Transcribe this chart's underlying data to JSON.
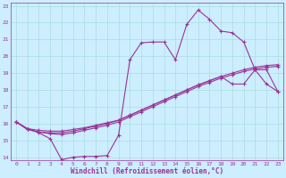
{
  "bg_color": "#cceeff",
  "grid_color": "#aadddd",
  "line_color": "#993399",
  "xlim": [
    -0.5,
    23.5
  ],
  "ylim": [
    13.8,
    23.2
  ],
  "yticks": [
    14,
    15,
    16,
    17,
    18,
    19,
    20,
    21,
    22,
    23
  ],
  "xticks": [
    0,
    1,
    2,
    3,
    4,
    5,
    6,
    7,
    8,
    9,
    10,
    11,
    12,
    13,
    14,
    15,
    16,
    17,
    18,
    19,
    20,
    21,
    22,
    23
  ],
  "xlabel": "Windchill (Refroidissement éolien,°C)",
  "line1_x": [
    0,
    1,
    2,
    3,
    4,
    5,
    6,
    7,
    8,
    9,
    10,
    11,
    12,
    13,
    14,
    15,
    16,
    17,
    18,
    19,
    20,
    21,
    22,
    23
  ],
  "line1_y": [
    16.1,
    15.7,
    15.45,
    15.1,
    13.85,
    14.0,
    14.05,
    14.05,
    14.1,
    15.3,
    19.8,
    20.8,
    20.85,
    20.85,
    19.8,
    21.9,
    22.75,
    22.2,
    21.5,
    21.4,
    20.85,
    19.2,
    18.35,
    17.9
  ],
  "line2_x": [
    0,
    1,
    2,
    3,
    4,
    5,
    6,
    7,
    8,
    9,
    10,
    11,
    12,
    13,
    14,
    15,
    16,
    17,
    18,
    19,
    20,
    21,
    22,
    23
  ],
  "line2_y": [
    16.1,
    15.7,
    15.6,
    15.55,
    15.55,
    15.65,
    15.75,
    15.9,
    16.05,
    16.2,
    16.5,
    16.8,
    17.1,
    17.4,
    17.7,
    18.0,
    18.3,
    18.55,
    18.8,
    18.35,
    18.35,
    19.2,
    19.2,
    17.9
  ],
  "line3_x": [
    0,
    1,
    2,
    3,
    4,
    5,
    6,
    7,
    8,
    9,
    10,
    11,
    12,
    13,
    14,
    15,
    16,
    17,
    18,
    19,
    20,
    21,
    22,
    23
  ],
  "line3_y": [
    16.1,
    15.65,
    15.5,
    15.45,
    15.45,
    15.55,
    15.7,
    15.85,
    16.0,
    16.2,
    16.5,
    16.8,
    17.1,
    17.4,
    17.7,
    18.0,
    18.3,
    18.55,
    18.8,
    19.0,
    19.2,
    19.35,
    19.45,
    19.5
  ],
  "line4_x": [
    0,
    1,
    2,
    3,
    4,
    5,
    6,
    7,
    8,
    9,
    10,
    11,
    12,
    13,
    14,
    15,
    16,
    17,
    18,
    19,
    20,
    21,
    22,
    23
  ],
  "line4_y": [
    16.1,
    15.65,
    15.5,
    15.4,
    15.35,
    15.45,
    15.6,
    15.75,
    15.9,
    16.1,
    16.4,
    16.7,
    17.0,
    17.3,
    17.6,
    17.9,
    18.2,
    18.45,
    18.7,
    18.9,
    19.1,
    19.25,
    19.35,
    19.4
  ]
}
